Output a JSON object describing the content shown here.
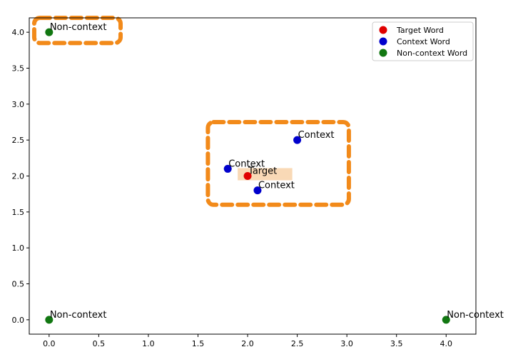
{
  "chart_data": {
    "type": "scatter",
    "xlim": [
      -0.2,
      4.3
    ],
    "ylim": [
      -0.2,
      4.2
    ],
    "xticks": [
      "0.0",
      "0.5",
      "1.0",
      "1.5",
      "2.0",
      "2.5",
      "3.0",
      "3.5",
      "4.0"
    ],
    "yticks": [
      "0.0",
      "0.5",
      "1.0",
      "1.5",
      "2.0",
      "2.5",
      "3.0",
      "3.5",
      "4.0"
    ],
    "grid": false,
    "legend_position": "top-right",
    "series": [
      {
        "name": "Target Word",
        "color": "#e00000",
        "points": [
          {
            "x": 2.0,
            "y": 2.0,
            "label": "Target"
          }
        ]
      },
      {
        "name": "Context Word",
        "color": "#0000cc",
        "points": [
          {
            "x": 1.8,
            "y": 2.1,
            "label": "Context"
          },
          {
            "x": 2.1,
            "y": 1.8,
            "label": "Context"
          },
          {
            "x": 2.5,
            "y": 2.5,
            "label": "Context"
          }
        ]
      },
      {
        "name": "Non-context Word",
        "color": "#117711",
        "points": [
          {
            "x": 0.0,
            "y": 4.0,
            "label": "Non-context"
          },
          {
            "x": 0.0,
            "y": 0.0,
            "label": "Non-context"
          },
          {
            "x": 4.0,
            "y": 0.0,
            "label": "Non-context"
          }
        ]
      }
    ],
    "annotations": {
      "highlight_boxes_color": "#f28a1a",
      "highlight_boxes": [
        {
          "x0": -0.15,
          "x1": 0.72,
          "y0": 3.85,
          "y1": 4.2
        },
        {
          "x0": 1.6,
          "x1": 3.02,
          "y0": 1.6,
          "y1": 2.75
        }
      ],
      "target_highlight_color": "#f9d9b6",
      "target_highlight": {
        "x0": 1.9,
        "x1": 2.45,
        "y0": 1.94,
        "y1": 2.11
      }
    }
  }
}
